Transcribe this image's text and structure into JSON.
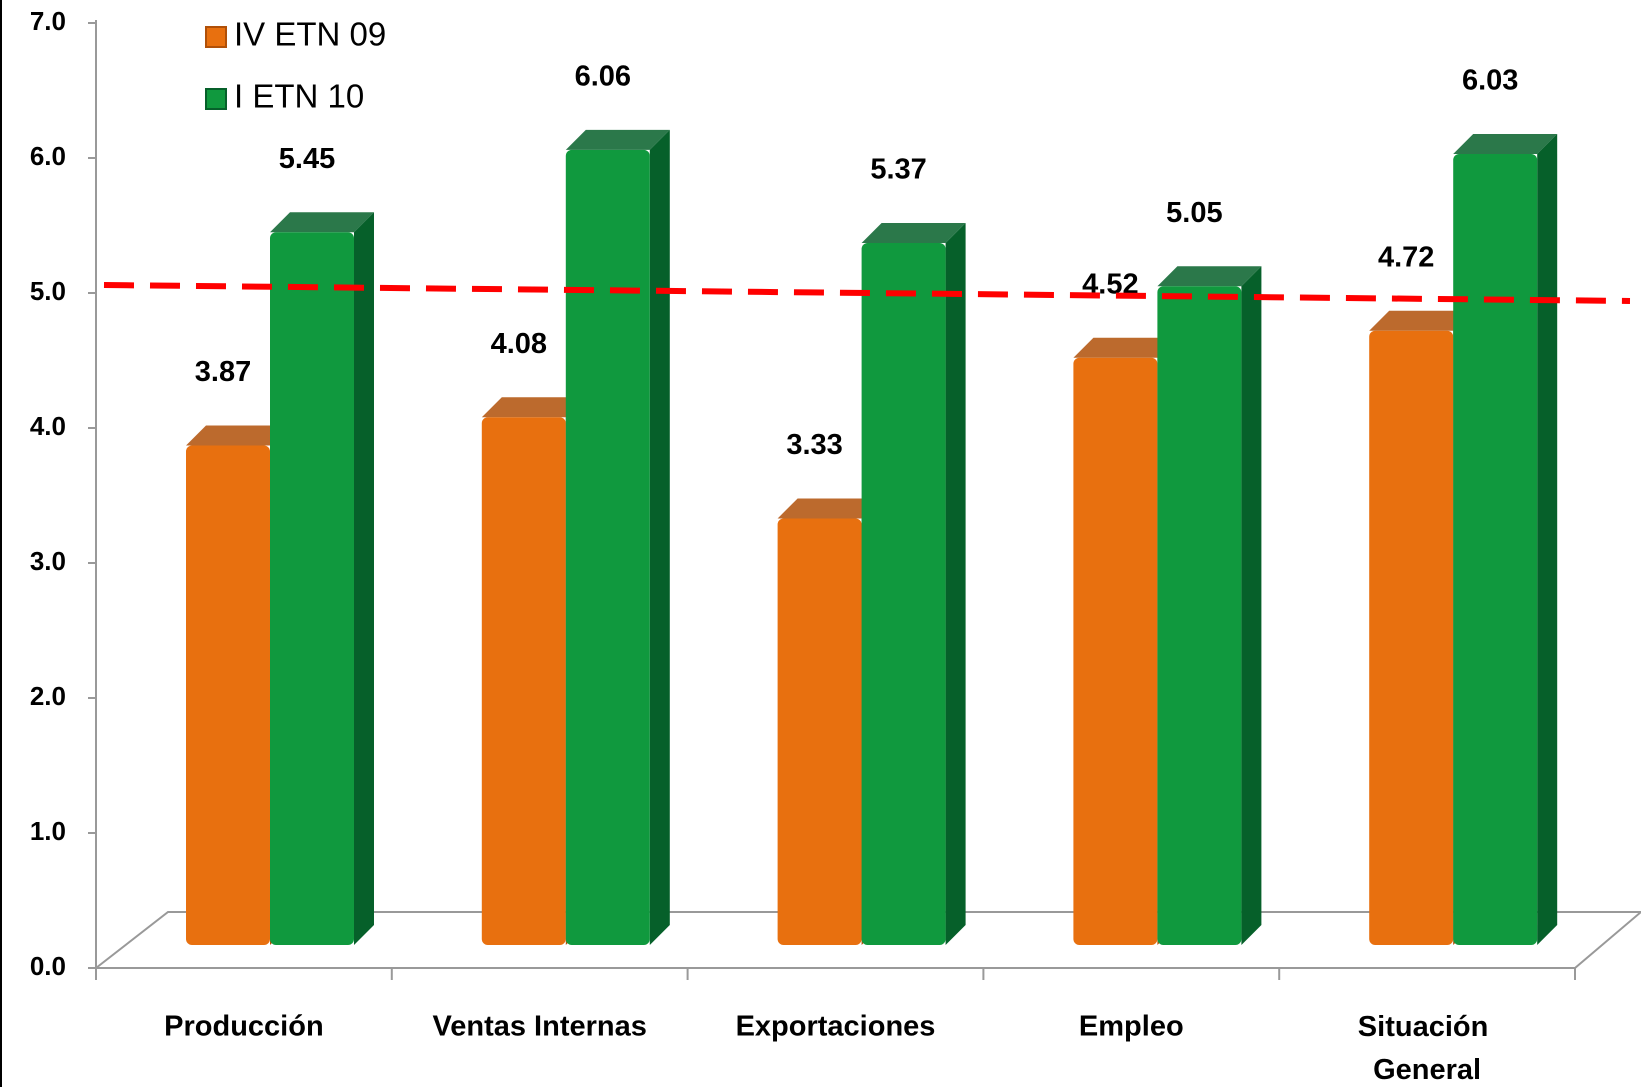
{
  "chart_data": {
    "type": "bar3d",
    "categories": [
      "Producción",
      "Ventas Internas",
      "Exportaciones",
      "Empleo",
      "Situación General"
    ],
    "series": [
      {
        "name": "IV ETN 09",
        "color": "#e8700f",
        "side_color": "#b05008",
        "values": [
          3.87,
          4.08,
          3.33,
          4.52,
          4.72
        ]
      },
      {
        "name": "I ETN 10",
        "color": "#10993e",
        "side_color": "#06602a",
        "values": [
          5.45,
          6.06,
          5.37,
          5.05,
          6.03
        ]
      }
    ],
    "ylim": [
      0,
      7
    ],
    "yticks": [
      {
        "value": 0,
        "label": "0.0"
      },
      {
        "value": 1,
        "label": "1.0"
      },
      {
        "value": 2,
        "label": "2.0"
      },
      {
        "value": 3,
        "label": "3.0"
      },
      {
        "value": 4,
        "label": "4.0"
      },
      {
        "value": 5,
        "label": "5.0"
      },
      {
        "value": 6,
        "label": "6.0"
      },
      {
        "value": 7,
        "label": "7.0"
      }
    ],
    "reference_line": {
      "value": 5,
      "color": "#ff0000"
    }
  }
}
